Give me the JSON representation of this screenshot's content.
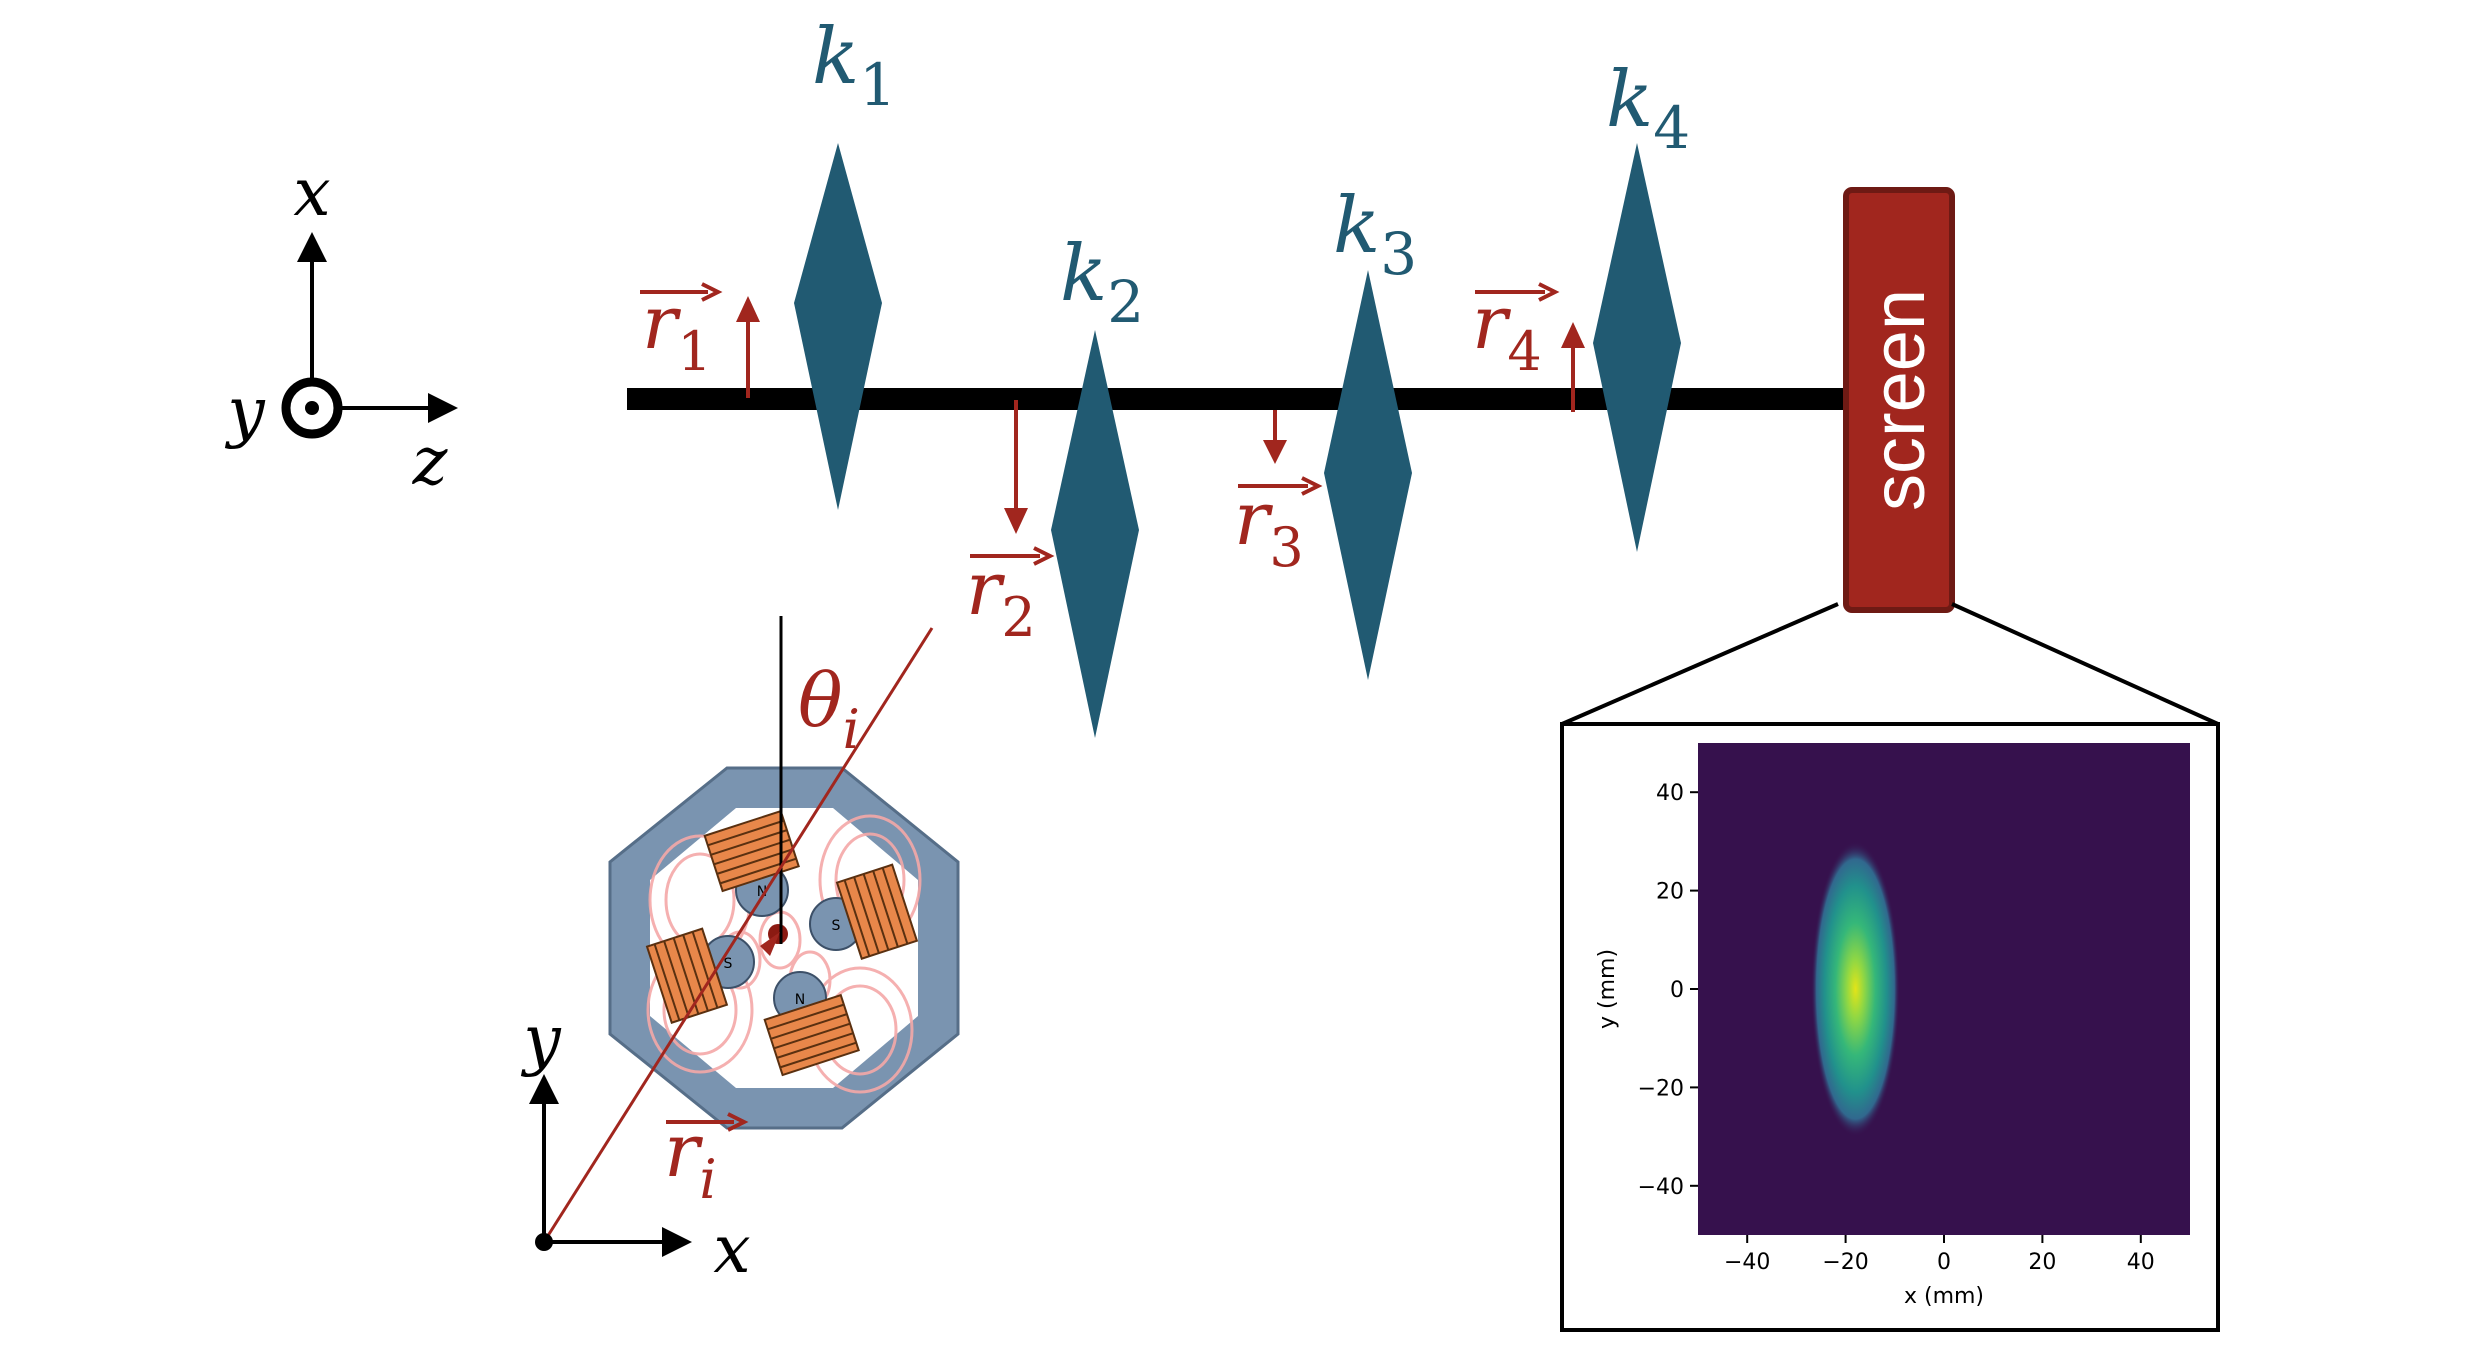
{
  "colors": {
    "lens": "#215a72",
    "arrow": "#a1261e",
    "screen": "#a1261e",
    "screen_border": "#6e1a14",
    "beamline": "#000000",
    "magnet_frame": "#7a94b0",
    "coil": "#e8874a",
    "plot_bg": "#36114d"
  },
  "axes_3d": {
    "x_label": "x",
    "y_label": "y",
    "z_label": "z"
  },
  "lenses": [
    {
      "id": "k1",
      "base": "k",
      "sub": "1"
    },
    {
      "id": "k2",
      "base": "k",
      "sub": "2"
    },
    {
      "id": "k3",
      "base": "k",
      "sub": "3"
    },
    {
      "id": "k4",
      "base": "k",
      "sub": "4"
    }
  ],
  "offsets": [
    {
      "id": "r1",
      "base": "r",
      "sub": "1",
      "direction": "up"
    },
    {
      "id": "r2",
      "base": "r",
      "sub": "2",
      "direction": "down"
    },
    {
      "id": "r3",
      "base": "r",
      "sub": "3",
      "direction": "down"
    },
    {
      "id": "r4",
      "base": "r",
      "sub": "4",
      "direction": "up"
    }
  ],
  "screen": {
    "label": "screen"
  },
  "quadrupole": {
    "theta": {
      "base": "θ",
      "sub": "i"
    },
    "radius": {
      "base": "r",
      "sub": "i"
    },
    "x_label": "x",
    "y_label": "y",
    "poles": [
      "N",
      "S",
      "S",
      "N"
    ]
  },
  "chart_data": {
    "type": "heatmap",
    "xlabel": "x (mm)",
    "ylabel": "y (mm)",
    "xlim": [
      -50,
      50
    ],
    "ylim": [
      -50,
      50
    ],
    "xticks": [
      "−40",
      "−20",
      "0",
      "20",
      "40"
    ],
    "xtick_values": [
      -40,
      -20,
      0,
      20,
      40
    ],
    "yticks": [
      "40",
      "20",
      "0",
      "−20",
      "−40"
    ],
    "ytick_values": [
      40,
      20,
      0,
      -20,
      -40
    ],
    "spot": {
      "center_x": -18,
      "center_y": 0,
      "sigma_x": 3,
      "sigma_y": 10,
      "peak_color": "#d9e021"
    },
    "colormap": "viridis"
  }
}
